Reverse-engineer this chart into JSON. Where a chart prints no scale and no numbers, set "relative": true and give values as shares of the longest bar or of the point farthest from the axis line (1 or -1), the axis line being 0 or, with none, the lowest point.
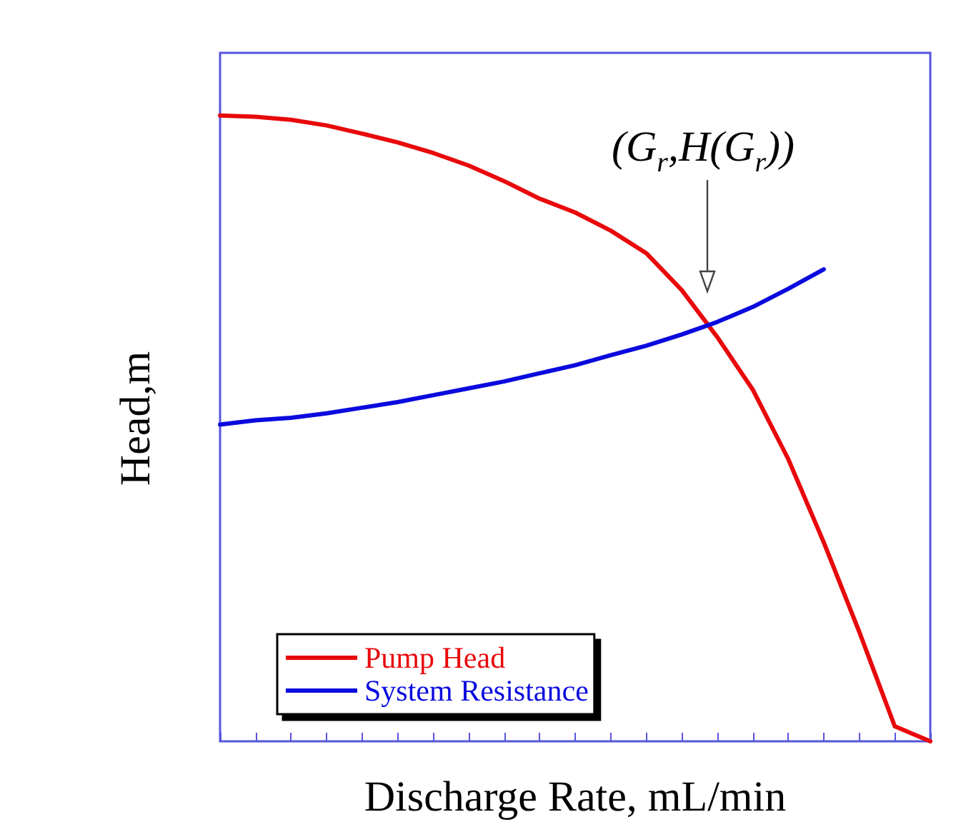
{
  "chart_data": {
    "type": "line",
    "relative": true,
    "xlabel": "Discharge Rate, mL/min",
    "ylabel": "Head,m",
    "legend": "bottom left",
    "grid": false,
    "marker": "none",
    "line_style": "solid",
    "annotations": [
      "(G$_{r}$,H(G$_{r}$))"
    ],
    "categories": [
      null,
      null,
      null,
      null,
      null,
      null,
      null,
      null,
      null,
      null,
      null,
      null,
      null,
      null,
      null,
      null,
      null,
      null,
      null,
      null,
      null
    ],
    "series": [
      {
        "name": "Pump Head",
        "color": "#e8090b",
        "values": [
          1.0,
          0.998,
          0.993,
          0.984,
          0.971,
          0.957,
          0.94,
          0.92,
          0.895,
          0.867,
          0.845,
          0.816,
          0.78,
          0.721,
          0.646,
          0.562,
          0.451,
          0.318,
          0.175,
          0.024,
          0
        ]
      },
      {
        "name": "System Resistance",
        "color": "#0a0ade",
        "values": [
          0.506,
          0.513,
          0.517,
          0.524,
          0.533,
          0.542,
          0.553,
          0.564,
          0.575,
          0.588,
          0.601,
          0.617,
          0.632,
          0.65,
          0.67,
          0.694,
          0.723,
          0.754,
          null,
          null,
          null
        ]
      }
    ]
  }
}
